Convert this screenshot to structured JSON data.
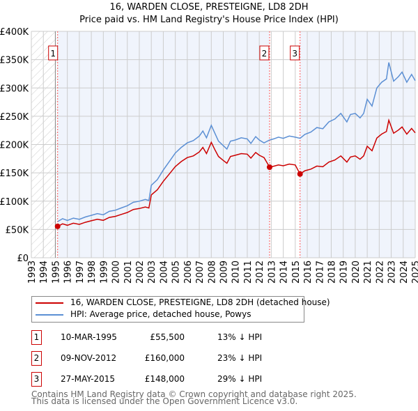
{
  "chart_data": {
    "type": "line",
    "title": "16, WARDEN CLOSE, PRESTEIGNE, LD8 2DH",
    "subtitle": "Price paid vs. HM Land Registry's House Price Index (HPI)",
    "xlabel": "",
    "ylabel": "",
    "xlim": [
      1993,
      2025
    ],
    "ylim": [
      0,
      400000
    ],
    "y_ticks": [
      "£0",
      "£50K",
      "£100K",
      "£150K",
      "£200K",
      "£250K",
      "£300K",
      "£350K",
      "£400K"
    ],
    "y_tick_values": [
      0,
      50000,
      100000,
      150000,
      200000,
      250000,
      300000,
      350000,
      400000
    ],
    "x_ticks": [
      "1993",
      "1994",
      "1995",
      "1996",
      "1997",
      "1998",
      "1999",
      "2000",
      "2001",
      "2002",
      "2003",
      "2004",
      "2005",
      "2006",
      "2007",
      "2008",
      "2009",
      "2010",
      "2011",
      "2012",
      "2013",
      "2014",
      "2015",
      "2016",
      "2017",
      "2018",
      "2019",
      "2020",
      "2021",
      "2022",
      "2023",
      "2024",
      "2025"
    ],
    "grid": true,
    "x": [
      1995.2,
      1995.6,
      1996,
      1996.5,
      1997,
      1997.5,
      1998,
      1998.5,
      1999,
      1999.5,
      2000,
      2000.5,
      2001,
      2001.5,
      2002,
      2002.5,
      2002.8,
      2003,
      2003.5,
      2004,
      2004.5,
      2005,
      2005.5,
      2006,
      2006.5,
      2007,
      2007.3,
      2007.6,
      2008,
      2008.3,
      2008.6,
      2009,
      2009.3,
      2009.6,
      2010,
      2010.5,
      2011,
      2011.3,
      2011.7,
      2012,
      2012.4,
      2012.86,
      2013.2,
      2013.6,
      2014,
      2014.5,
      2015,
      2015.4,
      2015.8,
      2016.3,
      2016.8,
      2017.3,
      2017.8,
      2018.3,
      2018.8,
      2019.3,
      2019.6,
      2020,
      2020.4,
      2020.7,
      2021,
      2021.4,
      2021.8,
      2022.2,
      2022.6,
      2022.8,
      2023.2,
      2023.6,
      2023.9,
      2024.3,
      2024.7,
      2025
    ],
    "series": [
      {
        "name": "16, WARDEN CLOSE, PRESTEIGNE, LD8 2DH (detached house)",
        "color": "#cc0000",
        "values": [
          55.5,
          60,
          57.4,
          61,
          59,
          62.6,
          65.3,
          67.9,
          66.1,
          71.3,
          73.1,
          76.6,
          80,
          85.3,
          87,
          89.6,
          87.9,
          111,
          120,
          135,
          148,
          161,
          170,
          177,
          180,
          187,
          195,
          184,
          204,
          191,
          179,
          172,
          167,
          179,
          181,
          184,
          183,
          176,
          186,
          181,
          177,
          160,
          161.7,
          164,
          162.5,
          165.5,
          164,
          148,
          153.7,
          156.5,
          162,
          160.7,
          169,
          172.7,
          180,
          169,
          178,
          180,
          174,
          180,
          197,
          189,
          211.5,
          218.5,
          223,
          243,
          220,
          225.6,
          231,
          218.5,
          228.4,
          220.7
        ]
      },
      {
        "name": "HPI: Average price, detached house, Powys",
        "color": "#5b8fd4",
        "values": [
          64,
          69,
          66,
          70,
          68,
          72,
          75,
          78,
          76,
          82,
          84,
          88,
          92,
          98,
          100,
          103,
          101,
          128,
          138,
          155,
          170,
          185,
          195,
          203,
          207,
          215,
          224,
          212,
          234,
          220,
          206,
          198,
          192,
          206,
          208,
          212,
          210,
          202,
          214,
          208,
          203,
          208,
          210,
          213,
          211,
          215,
          213,
          211,
          218,
          222,
          230,
          228,
          240,
          245,
          255,
          240,
          253,
          255,
          247,
          255,
          280,
          268,
          300,
          310,
          316,
          345,
          312,
          320,
          328,
          310,
          324,
          313
        ]
      }
    ],
    "value_unit": "thousands GBP",
    "sales": [
      {
        "label": "1",
        "date": "10-MAR-1995",
        "x": 1995.19,
        "price_value": 55.5,
        "price": "£55,500",
        "hpi": "13% ↓ HPI"
      },
      {
        "label": "2",
        "date": "09-NOV-2012",
        "x": 2012.86,
        "price_value": 160,
        "price": "£160,000",
        "hpi": "23% ↓ HPI"
      },
      {
        "label": "3",
        "date": "27-MAY-2015",
        "x": 2015.4,
        "price_value": 148,
        "price": "£148,000",
        "hpi": "29% ↓ HPI"
      }
    ],
    "legend_placement": "below"
  },
  "footer": {
    "line1": "Contains HM Land Registry data © Crown copyright and database right 2025.",
    "line2": "This data is licensed under the Open Government Licence v3.0."
  }
}
